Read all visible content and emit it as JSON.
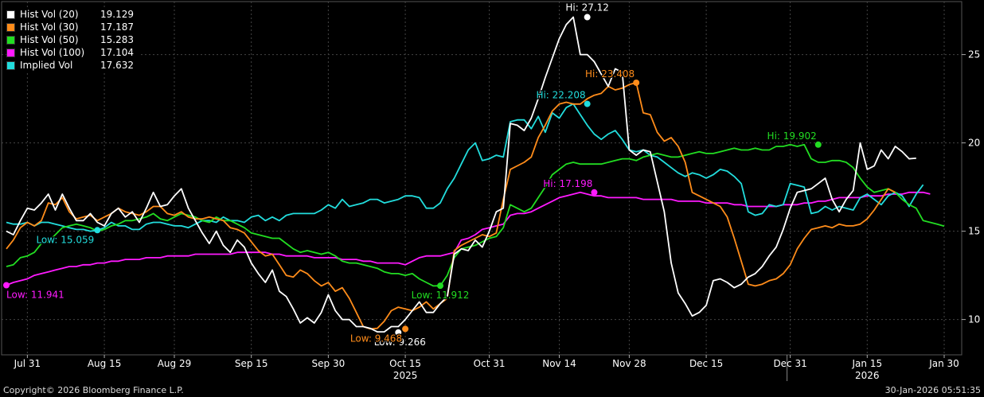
{
  "chart_data": {
    "type": "line",
    "x_dates": [
      "2025-07-28",
      "2025-07-29",
      "2025-07-30",
      "2025-07-31",
      "2025-08-01",
      "2025-08-04",
      "2025-08-05",
      "2025-08-06",
      "2025-08-07",
      "2025-08-08",
      "2025-08-11",
      "2025-08-12",
      "2025-08-13",
      "2025-08-14",
      "2025-08-15",
      "2025-08-18",
      "2025-08-19",
      "2025-08-20",
      "2025-08-21",
      "2025-08-22",
      "2025-08-25",
      "2025-08-26",
      "2025-08-27",
      "2025-08-28",
      "2025-08-29",
      "2025-09-01",
      "2025-09-02",
      "2025-09-03",
      "2025-09-04",
      "2025-09-05",
      "2025-09-08",
      "2025-09-09",
      "2025-09-10",
      "2025-09-11",
      "2025-09-12",
      "2025-09-15",
      "2025-09-16",
      "2025-09-17",
      "2025-09-18",
      "2025-09-19",
      "2025-09-22",
      "2025-09-23",
      "2025-09-24",
      "2025-09-25",
      "2025-09-26",
      "2025-09-29",
      "2025-09-30",
      "2025-10-01",
      "2025-10-02",
      "2025-10-03",
      "2025-10-06",
      "2025-10-07",
      "2025-10-08",
      "2025-10-09",
      "2025-10-10",
      "2025-10-13",
      "2025-10-14",
      "2025-10-15",
      "2025-10-16",
      "2025-10-17",
      "2025-10-20",
      "2025-10-21",
      "2025-10-22",
      "2025-10-23",
      "2025-10-24",
      "2025-10-27",
      "2025-10-28",
      "2025-10-29",
      "2025-10-30",
      "2025-10-31",
      "2025-11-03",
      "2025-11-04",
      "2025-11-05",
      "2025-11-06",
      "2025-11-07",
      "2025-11-10",
      "2025-11-11",
      "2025-11-12",
      "2025-11-13",
      "2025-11-14",
      "2025-11-17",
      "2025-11-18",
      "2025-11-19",
      "2025-11-20",
      "2025-11-21",
      "2025-11-24",
      "2025-11-25",
      "2025-11-26",
      "2025-11-27",
      "2025-11-28",
      "2025-12-01",
      "2025-12-02",
      "2025-12-03",
      "2025-12-04",
      "2025-12-05",
      "2025-12-08",
      "2025-12-09",
      "2025-12-10",
      "2025-12-11",
      "2025-12-12",
      "2025-12-15",
      "2025-12-16",
      "2025-12-17",
      "2025-12-18",
      "2025-12-19",
      "2025-12-22",
      "2025-12-23",
      "2025-12-24",
      "2025-12-25",
      "2025-12-26",
      "2025-12-29",
      "2025-12-30",
      "2025-12-31",
      "2026-01-01",
      "2026-01-02",
      "2026-01-05",
      "2026-01-06",
      "2026-01-07",
      "2026-01-08",
      "2026-01-09",
      "2026-01-12",
      "2026-01-13",
      "2026-01-14",
      "2026-01-15",
      "2026-01-16",
      "2026-01-19",
      "2026-01-20",
      "2026-01-21",
      "2026-01-22",
      "2026-01-23",
      "2026-01-26",
      "2026-01-27",
      "2026-01-28",
      "2026-01-29",
      "2026-01-30"
    ],
    "y_axis": {
      "position": "right",
      "range": [
        8,
        28
      ],
      "ticks": [
        10,
        15,
        20,
        25
      ]
    },
    "x_ticks": [
      {
        "label": "Jul 31",
        "date": "2025-07-31"
      },
      {
        "label": "Aug 15",
        "date": "2025-08-15"
      },
      {
        "label": "Aug 29",
        "date": "2025-08-29"
      },
      {
        "label": "Sep 15",
        "date": "2025-09-15"
      },
      {
        "label": "Sep 30",
        "date": "2025-09-30"
      },
      {
        "label": "Oct 15",
        "date": "2025-10-15"
      },
      {
        "label": "Oct 31",
        "date": "2025-10-31"
      },
      {
        "label": "Nov 14",
        "date": "2025-11-14"
      },
      {
        "label": "Nov 28",
        "date": "2025-11-28"
      },
      {
        "label": "Dec 15",
        "date": "2025-12-15"
      },
      {
        "label": "Dec 31",
        "date": "2025-12-31"
      },
      {
        "label": "Jan 15",
        "date": "2026-01-15"
      },
      {
        "label": "Jan 30",
        "date": "2026-01-30"
      }
    ],
    "year_labels": [
      {
        "label": "2025",
        "date": "2025-10-15"
      },
      {
        "label": "2026",
        "date": "2026-01-15"
      }
    ],
    "year_separators": [
      "2025-12-31"
    ],
    "grid": true,
    "legend": "top-left",
    "series": [
      {
        "name": "Hist Vol (20)",
        "last": "19.129",
        "color": "#ffffff",
        "values": [
          15.0,
          14.8,
          15.6,
          16.3,
          16.2,
          16.6,
          17.1,
          16.2,
          17.1,
          16.3,
          15.6,
          15.6,
          16.0,
          15.5,
          15.3,
          16.0,
          16.3,
          15.8,
          16.1,
          15.5,
          16.3,
          17.2,
          16.4,
          16.5,
          17.0,
          17.4,
          16.3,
          15.6,
          14.9,
          14.3,
          15.0,
          14.2,
          13.8,
          14.5,
          14.1,
          13.2,
          12.6,
          12.1,
          12.8,
          11.6,
          11.3,
          10.6,
          9.8,
          10.1,
          9.8,
          10.4,
          11.4,
          10.5,
          10.0,
          10.0,
          9.6,
          9.6,
          9.5,
          9.3,
          9.3,
          9.6,
          9.6,
          10.0,
          10.5,
          11.0,
          10.4,
          10.4,
          10.9,
          11.3,
          13.7,
          14.0,
          13.9,
          14.5,
          14.1,
          15.0,
          16.1,
          16.3,
          21.1,
          21.0,
          20.7,
          21.4,
          22.5,
          23.7,
          24.8,
          25.9,
          26.7,
          27.12,
          25.0,
          25.0,
          24.6,
          23.9,
          23.2,
          24.2,
          24.0,
          19.6,
          19.3,
          19.6,
          19.5,
          17.8,
          16.1,
          13.2,
          11.5,
          10.9,
          10.2,
          10.4,
          10.8,
          12.2,
          12.3,
          12.1,
          11.8,
          12.0,
          12.4,
          12.6,
          13.0,
          13.6,
          14.1,
          15.1,
          16.3,
          17.2,
          17.3,
          17.4,
          17.7,
          18.0,
          16.8,
          16.1,
          16.8,
          17.3,
          20.0,
          18.5,
          18.7,
          19.6,
          19.1,
          19.8,
          19.5,
          19.1,
          19.129
        ],
        "annotations": [
          {
            "kind": "Hi",
            "text": "Hi: 27.12",
            "date": "2025-11-20",
            "value": 27.12,
            "anchor": "above"
          },
          {
            "kind": "Low",
            "text": "Low: 9.266",
            "date": "2025-10-14",
            "value": 9.266,
            "anchor": "below-right"
          }
        ]
      },
      {
        "name": "Hist Vol (30)",
        "last": "17.187",
        "color": "#ff8c1a",
        "values": [
          14.0,
          14.5,
          15.2,
          15.5,
          15.3,
          15.6,
          16.6,
          16.5,
          16.9,
          16.1,
          15.7,
          15.8,
          15.9,
          15.6,
          15.8,
          16.0,
          16.3,
          16.1,
          16.0,
          15.9,
          16.1,
          16.4,
          16.4,
          16.0,
          15.9,
          16.1,
          15.8,
          15.7,
          15.7,
          15.8,
          15.7,
          15.6,
          15.2,
          15.1,
          14.9,
          14.4,
          13.9,
          13.6,
          13.7,
          13.1,
          12.5,
          12.4,
          12.8,
          12.6,
          12.2,
          11.9,
          12.1,
          11.6,
          11.8,
          11.2,
          10.4,
          9.6,
          9.468,
          9.5,
          9.9,
          10.5,
          10.7,
          10.6,
          10.5,
          10.7,
          11.0,
          10.6,
          10.9,
          11.2,
          13.9,
          14.2,
          14.4,
          14.6,
          14.8,
          14.7,
          14.9,
          16.8,
          18.5,
          18.7,
          18.9,
          19.2,
          20.3,
          21.0,
          21.8,
          22.2,
          22.3,
          22.2,
          22.2,
          22.5,
          22.7,
          22.8,
          23.2,
          23.0,
          23.1,
          23.3,
          23.408,
          21.7,
          21.6,
          20.6,
          20.1,
          20.3,
          19.8,
          18.9,
          17.2,
          17.0,
          16.8,
          16.6,
          16.4,
          15.8,
          14.6,
          13.3,
          12.0,
          11.9,
          12.0,
          12.2,
          12.3,
          12.6,
          13.1,
          14.0,
          14.6,
          15.1,
          15.2,
          15.3,
          15.2,
          15.4,
          15.3,
          15.3,
          15.4,
          15.7,
          16.2,
          16.8,
          17.4,
          17.2
        ],
        "annotations": [
          {
            "kind": "Hi",
            "text": "Hi: 23.408",
            "date": "2025-12-01",
            "value": 23.408,
            "anchor": "above-left"
          },
          {
            "kind": "Low",
            "text": "Low: 9.468",
            "date": "2025-10-15",
            "value": 9.468,
            "anchor": "below-left"
          }
        ]
      },
      {
        "name": "Hist Vol (50)",
        "last": "15.283",
        "color": "#22dd22",
        "values": [
          13.0,
          13.1,
          13.5,
          13.6,
          13.8,
          14.3,
          14.4,
          14.8,
          15.2,
          15.3,
          15.4,
          15.3,
          15.2,
          15.0,
          15.1,
          15.3,
          15.4,
          15.6,
          15.6,
          15.7,
          15.8,
          16.0,
          15.7,
          15.6,
          15.8,
          16.0,
          15.9,
          15.8,
          15.6,
          15.5,
          15.8,
          15.6,
          15.6,
          15.4,
          15.2,
          14.9,
          14.8,
          14.7,
          14.6,
          14.6,
          14.3,
          14.0,
          13.8,
          13.9,
          13.8,
          13.7,
          13.8,
          13.6,
          13.3,
          13.2,
          13.2,
          13.1,
          13.0,
          12.9,
          12.7,
          12.6,
          12.6,
          12.5,
          12.6,
          12.3,
          12.1,
          11.9,
          11.912,
          12.5,
          13.5,
          14.0,
          14.1,
          14.2,
          14.4,
          14.6,
          14.7,
          15.2,
          16.5,
          16.3,
          16.1,
          16.3,
          16.9,
          17.5,
          18.2,
          18.5,
          18.8,
          18.9,
          18.8,
          18.8,
          18.8,
          18.8,
          18.9,
          19.0,
          19.1,
          19.1,
          19.0,
          19.2,
          19.3,
          19.4,
          19.3,
          19.2,
          19.2,
          19.3,
          19.4,
          19.5,
          19.4,
          19.4,
          19.5,
          19.6,
          19.7,
          19.6,
          19.6,
          19.7,
          19.6,
          19.6,
          19.8,
          19.8,
          19.902,
          19.8,
          19.9,
          19.1,
          18.9,
          18.9,
          19.0,
          19.0,
          18.9,
          18.6,
          18.0,
          17.5,
          17.2,
          17.3,
          17.4,
          17.2,
          16.8,
          16.5,
          16.3,
          15.6,
          15.5,
          15.4,
          15.283
        ],
        "annotations": [
          {
            "kind": "Hi",
            "text": "Hi: 19.902",
            "date": "2026-01-06",
            "value": 19.902,
            "anchor": "above-left"
          },
          {
            "kind": "Low",
            "text": "Low: 11.912",
            "date": "2025-10-22",
            "value": 11.912,
            "anchor": "below"
          }
        ]
      },
      {
        "name": "Hist Vol (100)",
        "last": "17.104",
        "color": "#ff1aff",
        "values": [
          11.941,
          12.1,
          12.2,
          12.3,
          12.5,
          12.6,
          12.7,
          12.8,
          12.9,
          13.0,
          13.0,
          13.1,
          13.1,
          13.2,
          13.2,
          13.3,
          13.3,
          13.4,
          13.4,
          13.4,
          13.5,
          13.5,
          13.5,
          13.6,
          13.6,
          13.6,
          13.6,
          13.7,
          13.7,
          13.7,
          13.7,
          13.7,
          13.7,
          13.8,
          13.8,
          13.8,
          13.8,
          13.8,
          13.7,
          13.7,
          13.6,
          13.6,
          13.6,
          13.6,
          13.5,
          13.5,
          13.5,
          13.5,
          13.4,
          13.4,
          13.4,
          13.3,
          13.3,
          13.2,
          13.2,
          13.2,
          13.2,
          13.1,
          13.3,
          13.5,
          13.6,
          13.6,
          13.6,
          13.7,
          13.8,
          14.5,
          14.6,
          14.8,
          15.1,
          15.2,
          15.3,
          15.4,
          15.9,
          16.0,
          16.0,
          16.1,
          16.3,
          16.5,
          16.7,
          16.9,
          17.0,
          17.1,
          17.198,
          17.1,
          17.0,
          17.0,
          16.9,
          16.9,
          16.9,
          16.9,
          16.9,
          16.8,
          16.8,
          16.8,
          16.8,
          16.8,
          16.7,
          16.7,
          16.7,
          16.7,
          16.6,
          16.6,
          16.6,
          16.6,
          16.5,
          16.5,
          16.4,
          16.4,
          16.4,
          16.4,
          16.4,
          16.5,
          16.5,
          16.5,
          16.6,
          16.6,
          16.7,
          16.7,
          16.8,
          16.9,
          16.9,
          16.9,
          16.9,
          17.0,
          17.0,
          17.0,
          17.1,
          17.1,
          17.1,
          17.2,
          17.2,
          17.2,
          17.104
        ],
        "annotations": [
          {
            "kind": "Hi",
            "text": "Hi: 17.198",
            "date": "2025-11-21",
            "value": 17.198,
            "anchor": "above-left"
          },
          {
            "kind": "Low",
            "text": "Low: 11.941",
            "date": "2025-07-28",
            "value": 11.941,
            "anchor": "below-right"
          }
        ]
      },
      {
        "name": "Implied Vol",
        "last": "17.632",
        "color": "#22dddd",
        "values": [
          15.5,
          15.4,
          15.4,
          15.5,
          15.3,
          15.5,
          15.5,
          15.4,
          15.3,
          15.2,
          15.1,
          15.1,
          15.0,
          15.059,
          15.2,
          15.5,
          15.3,
          15.3,
          15.1,
          15.1,
          15.4,
          15.5,
          15.5,
          15.4,
          15.3,
          15.3,
          15.2,
          15.4,
          15.6,
          15.6,
          15.5,
          15.8,
          15.6,
          15.6,
          15.5,
          15.8,
          15.9,
          15.6,
          15.8,
          15.6,
          15.9,
          16.0,
          16.0,
          16.0,
          16.0,
          16.2,
          16.5,
          16.3,
          16.8,
          16.4,
          16.5,
          16.6,
          16.8,
          16.8,
          16.6,
          16.7,
          16.8,
          17.0,
          17.0,
          16.9,
          16.3,
          16.3,
          16.6,
          17.4,
          18.0,
          18.8,
          19.6,
          20.0,
          19.0,
          19.1,
          19.3,
          19.2,
          21.2,
          21.3,
          21.3,
          20.8,
          21.5,
          20.6,
          21.7,
          21.4,
          22.0,
          22.208,
          21.6,
          21.0,
          20.5,
          20.2,
          20.5,
          20.7,
          20.2,
          19.6,
          19.5,
          19.6,
          19.3,
          19.2,
          18.9,
          18.6,
          18.3,
          18.1,
          18.3,
          18.2,
          18.0,
          18.2,
          18.5,
          18.4,
          18.1,
          17.7,
          16.1,
          15.9,
          16.0,
          16.5,
          16.4,
          16.5,
          17.7,
          17.6,
          17.5,
          16.0,
          16.1,
          16.4,
          16.2,
          16.4,
          16.3,
          16.2,
          16.9,
          17.1,
          16.8,
          16.5,
          17.0,
          17.2,
          17.0,
          16.4,
          17.1,
          17.632
        ],
        "annotations": [
          {
            "kind": "Hi",
            "text": "Hi: 22.208",
            "date": "2025-11-20",
            "value": 22.208,
            "anchor": "above-left"
          },
          {
            "kind": "Low",
            "text": "Low: 15.059",
            "date": "2025-08-14",
            "value": 15.059,
            "anchor": "below-left"
          }
        ]
      }
    ]
  },
  "footer": {
    "copyright": "Copyright© 2026 Bloomberg Finance L.P.",
    "timestamp": "30-Jan-2026 05:51:35"
  }
}
